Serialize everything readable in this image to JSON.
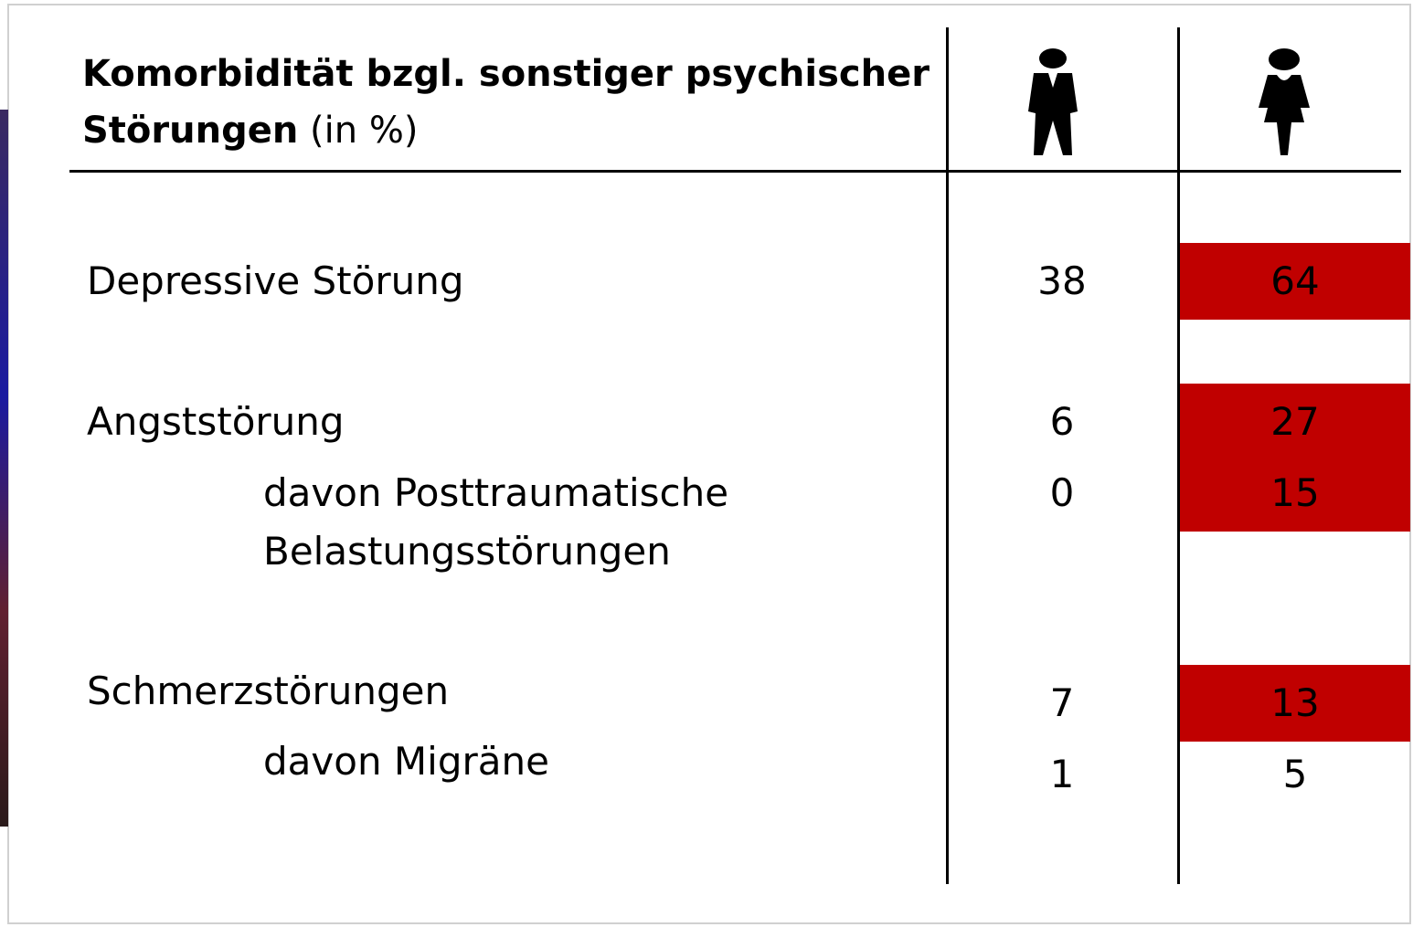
{
  "header": {
    "title": "Komorbidität bzgl. sonstiger psychischer Störungen",
    "unit": "(in %)"
  },
  "highlight_color": "#c00000",
  "table": {
    "rows": [
      {
        "label": "Depressive Störung",
        "male": "38",
        "female": "64",
        "highlight": true,
        "indent": false
      },
      {
        "label": "Angststörung",
        "male": "6",
        "female": "27",
        "highlight": true,
        "indent": false
      },
      {
        "label": "davon Posttraumatische Belastungsstörungen",
        "male": "0",
        "female": "15",
        "highlight": true,
        "indent": true
      },
      {
        "label": "Schmerzstörungen",
        "male": "7",
        "female": "13",
        "highlight": true,
        "indent": false
      },
      {
        "label": "davon Migräne",
        "male": "1",
        "female": "5",
        "highlight": false,
        "indent": true
      }
    ]
  }
}
